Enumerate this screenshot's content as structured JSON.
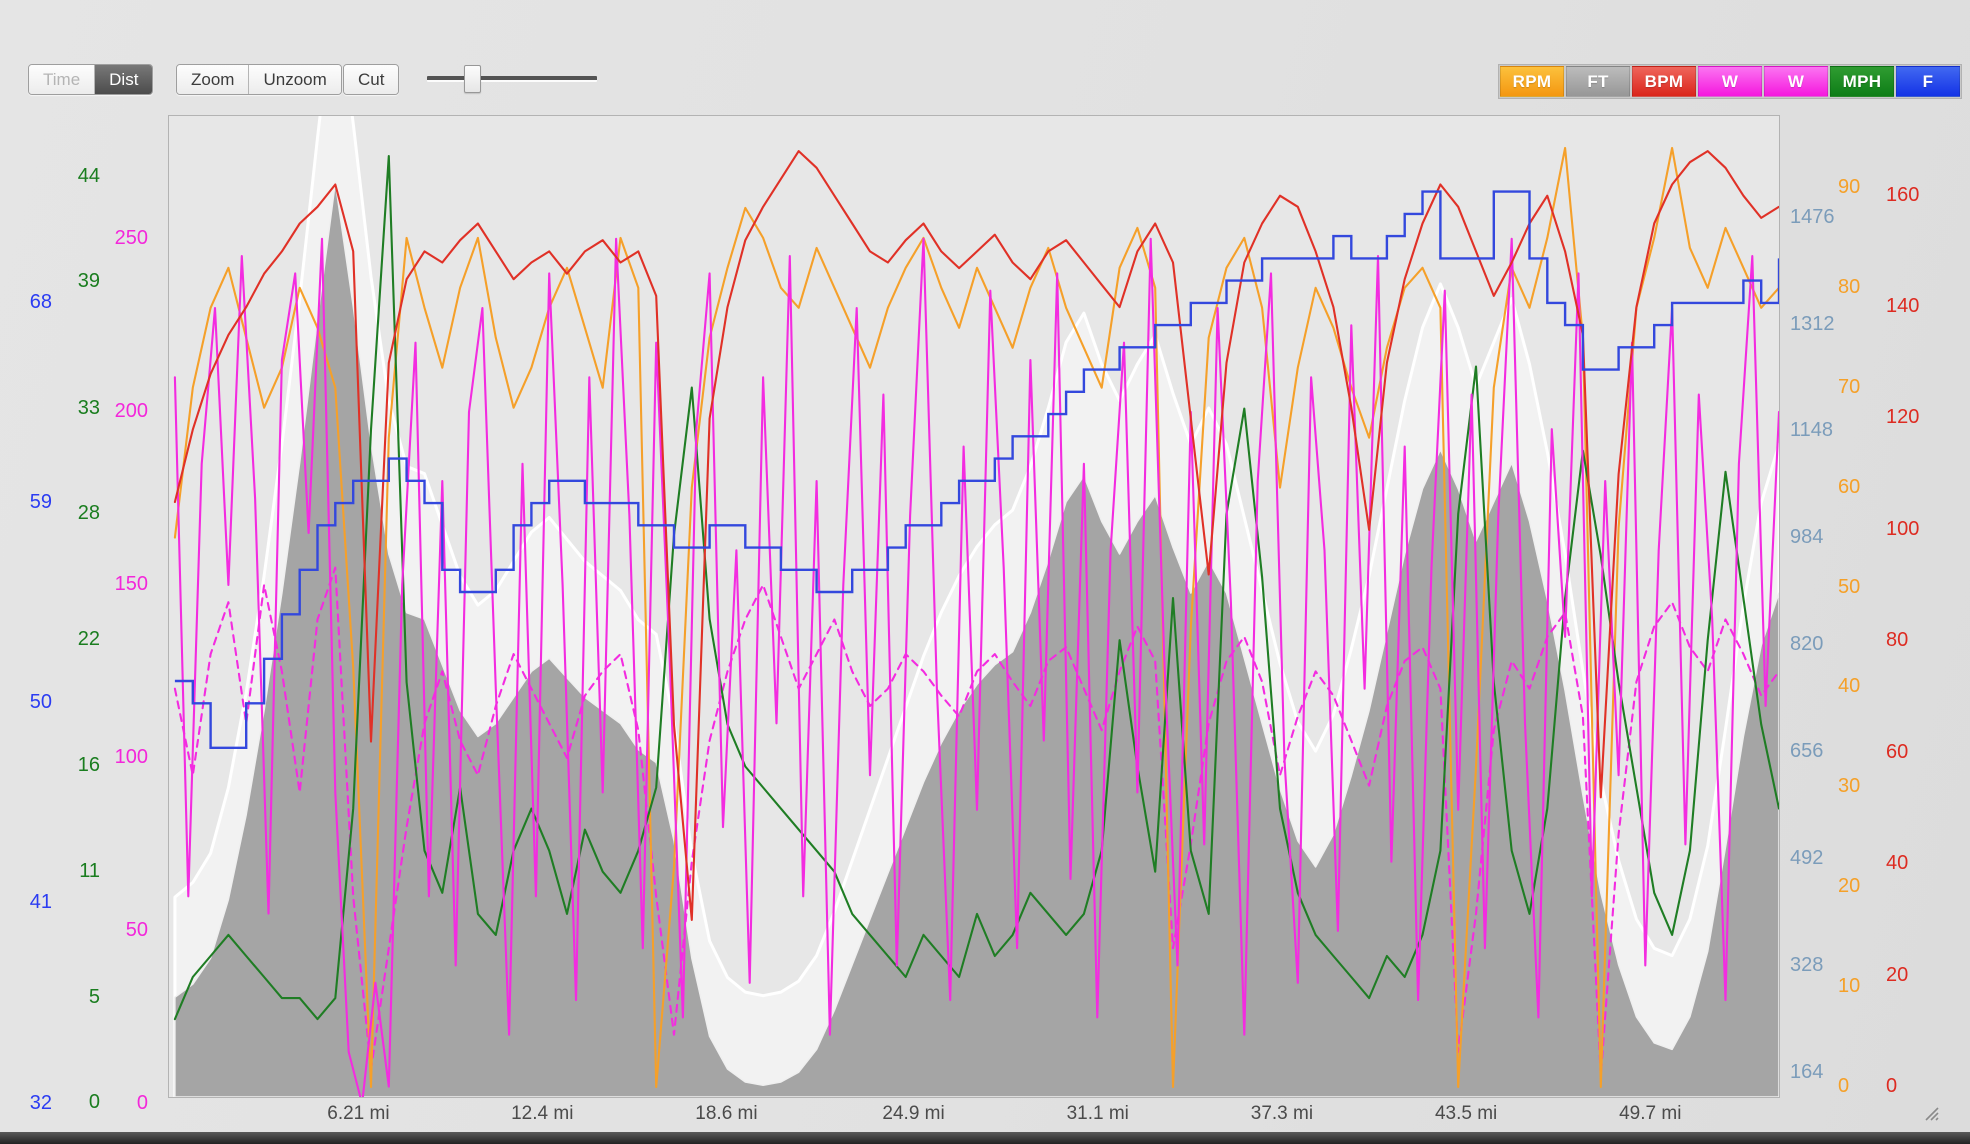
{
  "toolbar": {
    "mode_toggle": [
      {
        "label": "Time",
        "state": "inactive"
      },
      {
        "label": "Dist",
        "state": "active"
      }
    ],
    "zoom_label": "Zoom",
    "unzoom_label": "Unzoom",
    "cut_label": "Cut",
    "slider": {
      "position_pct": 22
    }
  },
  "legend": [
    {
      "label": "RPM",
      "series": "cadence",
      "color_top": "#fcc13c",
      "color_bottom": "#f49711"
    },
    {
      "label": "FT",
      "series": "elevation",
      "color_top": "#bcbcbc",
      "color_bottom": "#979797"
    },
    {
      "label": "BPM",
      "series": "heart_rate",
      "color_top": "#ef655b",
      "color_bottom": "#da251b"
    },
    {
      "label": "W",
      "series": "power",
      "color_top": "#fb74f1",
      "color_bottom": "#f517de"
    },
    {
      "label": "W",
      "series": "power_smoothed",
      "color_top": "#fb74f1",
      "color_bottom": "#f517de"
    },
    {
      "label": "MPH",
      "series": "speed",
      "color_top": "#2f9c31",
      "color_bottom": "#0e7d17"
    },
    {
      "label": "F",
      "series": "temperature",
      "color_top": "#4168f1",
      "color_bottom": "#1433e6"
    }
  ],
  "chart_data": {
    "type": "line",
    "x_unit": "mi",
    "xlim": [
      -0.2,
      54
    ],
    "grid": false,
    "x_ticks": [
      {
        "value": 6.21,
        "label": "6.21 mi"
      },
      {
        "value": 12.4,
        "label": "12.4 mi"
      },
      {
        "value": 18.6,
        "label": "18.6 mi"
      },
      {
        "value": 24.9,
        "label": "24.9 mi"
      },
      {
        "value": 31.1,
        "label": "31.1 mi"
      },
      {
        "value": 37.3,
        "label": "37.3 mi"
      },
      {
        "value": 43.5,
        "label": "43.5 mi"
      },
      {
        "value": 49.7,
        "label": "49.7 mi"
      }
    ],
    "axes": {
      "f": {
        "side": "left",
        "unit": "F",
        "color": "#2b3cf2",
        "ylim": [
          32.3,
          76.4
        ],
        "ticks": [
          32,
          41,
          50,
          59,
          68
        ]
      },
      "mph": {
        "side": "left",
        "unit": "MPH",
        "color": "#1a7d1f",
        "ylim": [
          0.3,
          46.9
        ],
        "ticks": [
          0,
          5,
          11,
          16,
          22,
          28,
          33,
          39,
          44
        ]
      },
      "w": {
        "side": "left",
        "unit": "W",
        "color": "#f327da",
        "ylim": [
          2,
          285.5
        ],
        "ticks": [
          0,
          50,
          100,
          150,
          200,
          250
        ]
      },
      "ft": {
        "side": "right",
        "unit": "FT",
        "color": "#7b9cba",
        "ylim": [
          127,
          1632
        ],
        "ticks": [
          164,
          328,
          492,
          656,
          820,
          984,
          1148,
          1312,
          1476
        ]
      },
      "rpm": {
        "side": "right",
        "unit": "RPM",
        "color": "#f5a028",
        "ylim": [
          -1,
          97.2
        ],
        "ticks": [
          0,
          10,
          20,
          30,
          40,
          50,
          60,
          70,
          80,
          90
        ]
      },
      "bpm": {
        "side": "right",
        "unit": "BPM",
        "color": "#dd2b21",
        "ylim": [
          -1.8,
          174.3
        ],
        "ticks": [
          0,
          20,
          40,
          60,
          80,
          100,
          120,
          140,
          160
        ]
      }
    },
    "series": [
      {
        "name": "elevation",
        "label": "FT",
        "axis": "ft",
        "type": "area",
        "color": "#9e9e9e",
        "glow_color": "#f2f2f2",
        "x_step_mi": 0.6,
        "values": [
          280,
          300,
          340,
          430,
          560,
          720,
          900,
          1100,
          1320,
          1530,
          1340,
          1130,
          960,
          870,
          860,
          790,
          720,
          680,
          700,
          740,
          780,
          800,
          770,
          740,
          720,
          700,
          660,
          640,
          520,
          340,
          220,
          170,
          150,
          145,
          150,
          165,
          200,
          260,
          330,
          400,
          470,
          540,
          610,
          670,
          720,
          760,
          790,
          810,
          870,
          950,
          1040,
          1080,
          1010,
          960,
          1010,
          1050,
          970,
          900,
          950,
          900,
          800,
          700,
          600,
          520,
          480,
          530,
          620,
          720,
          840,
          960,
          1060,
          1120,
          1060,
          980,
          1040,
          1100,
          1010,
          890,
          750,
          590,
          440,
          330,
          250,
          210,
          200,
          250,
          350,
          510,
          680,
          820,
          900
        ]
      },
      {
        "name": "power_smoothed",
        "label": "W",
        "axis": "w",
        "type": "dashed",
        "color": "#f32ce0",
        "x_step_mi": 0.6,
        "values": [
          120,
          95,
          130,
          145,
          110,
          150,
          125,
          90,
          140,
          155,
          60,
          10,
          45,
          80,
          110,
          125,
          105,
          95,
          115,
          130,
          120,
          110,
          100,
          118,
          125,
          130,
          108,
          60,
          20,
          70,
          105,
          125,
          140,
          150,
          135,
          120,
          130,
          140,
          125,
          115,
          120,
          130,
          125,
          118,
          112,
          125,
          130,
          122,
          115,
          128,
          132,
          120,
          108,
          125,
          138,
          128,
          45,
          75,
          110,
          128,
          135,
          122,
          95,
          112,
          125,
          118,
          105,
          92,
          115,
          128,
          132,
          120,
          15,
          55,
          108,
          128,
          120,
          135,
          142,
          112,
          8,
          78,
          122,
          138,
          145,
          132,
          125,
          140,
          130,
          118,
          125
        ]
      },
      {
        "name": "cadence",
        "label": "RPM",
        "axis": "rpm",
        "type": "line",
        "color": "#f5a02a",
        "x_step_mi": 0.6,
        "values": [
          55,
          70,
          78,
          82,
          75,
          68,
          72,
          80,
          76,
          70,
          42,
          0,
          65,
          85,
          78,
          72,
          80,
          85,
          75,
          68,
          72,
          78,
          82,
          76,
          70,
          85,
          80,
          0,
          22,
          60,
          75,
          82,
          88,
          85,
          80,
          78,
          84,
          80,
          76,
          72,
          78,
          82,
          85,
          80,
          76,
          82,
          78,
          74,
          80,
          84,
          78,
          74,
          70,
          82,
          86,
          80,
          0,
          46,
          75,
          82,
          85,
          78,
          60,
          72,
          80,
          76,
          70,
          65,
          74,
          80,
          82,
          78,
          0,
          32,
          70,
          82,
          78,
          85,
          94,
          75,
          0,
          56,
          78,
          85,
          94,
          84,
          80,
          86,
          82,
          78,
          80
        ]
      },
      {
        "name": "speed",
        "label": "MPH",
        "axis": "mph",
        "type": "line",
        "color": "#1f7d24",
        "x_step_mi": 0.6,
        "values": [
          4,
          6,
          7,
          8,
          7,
          6,
          5,
          5,
          4,
          5,
          14,
          32,
          45,
          20,
          12,
          10,
          15,
          9,
          8,
          12,
          14,
          12,
          9,
          13,
          11,
          10,
          12,
          15,
          27,
          34,
          23,
          18,
          16,
          15,
          14,
          13,
          12,
          11,
          9,
          8,
          7,
          6,
          8,
          7,
          6,
          9,
          7,
          8,
          10,
          9,
          8,
          9,
          12,
          22,
          16,
          11,
          24,
          12,
          9,
          28,
          33,
          25,
          14,
          10,
          8,
          7,
          6,
          5,
          7,
          6,
          8,
          12,
          28,
          35,
          20,
          12,
          9,
          14,
          24,
          31,
          26,
          20,
          15,
          10,
          8,
          12,
          22,
          30,
          24,
          18,
          14
        ]
      },
      {
        "name": "power",
        "label": "W",
        "axis": "w",
        "type": "line",
        "color": "#f32ce0",
        "x_step_mi": 0.45,
        "values": [
          210,
          60,
          185,
          230,
          150,
          245,
          175,
          55,
          215,
          240,
          165,
          250,
          90,
          15,
          0,
          35,
          5,
          150,
          220,
          60,
          180,
          40,
          200,
          230,
          120,
          20,
          185,
          60,
          240,
          150,
          30,
          210,
          90,
          250,
          170,
          45,
          220,
          130,
          25,
          195,
          240,
          80,
          160,
          35,
          210,
          110,
          245,
          60,
          180,
          20,
          150,
          230,
          95,
          205,
          40,
          170,
          250,
          120,
          30,
          190,
          85,
          235,
          155,
          45,
          215,
          105,
          240,
          65,
          185,
          25,
          160,
          220,
          90,
          250,
          130,
          40,
          200,
          75,
          230,
          145,
          20,
          180,
          240,
          100,
          35,
          210,
          160,
          50,
          225,
          120,
          245,
          70,
          190,
          30,
          155,
          235,
          85,
          205,
          45,
          170,
          250,
          110,
          25,
          195,
          135,
          240,
          60,
          180,
          95,
          220,
          40,
          160,
          230,
          75,
          205,
          140,
          30,
          185,
          245,
          115,
          200
        ]
      },
      {
        "name": "heart_rate",
        "label": "BPM",
        "axis": "bpm",
        "type": "line",
        "color": "#e03127",
        "x_step_mi": 0.6,
        "values": [
          105,
          118,
          128,
          135,
          140,
          146,
          150,
          155,
          158,
          162,
          150,
          62,
          130,
          145,
          150,
          148,
          152,
          155,
          150,
          145,
          148,
          150,
          146,
          150,
          152,
          148,
          150,
          142,
          65,
          30,
          120,
          140,
          152,
          158,
          163,
          168,
          165,
          160,
          155,
          150,
          148,
          152,
          155,
          150,
          147,
          150,
          153,
          148,
          145,
          150,
          152,
          148,
          144,
          140,
          150,
          155,
          148,
          120,
          92,
          130,
          148,
          155,
          160,
          158,
          150,
          140,
          122,
          100,
          130,
          145,
          155,
          162,
          158,
          150,
          142,
          148,
          155,
          160,
          150,
          135,
          52,
          110,
          140,
          155,
          162,
          166,
          168,
          165,
          160,
          156,
          158
        ]
      },
      {
        "name": "temperature",
        "label": "F",
        "axis": "f",
        "type": "step",
        "color": "#3348dd",
        "x_step_mi": 0.6,
        "values": [
          51,
          50,
          48,
          48,
          50,
          52,
          54,
          56,
          58,
          59,
          60,
          60,
          61,
          60,
          59,
          56,
          55,
          55,
          56,
          58,
          59,
          60,
          60,
          59,
          59,
          59,
          58,
          58,
          57,
          57,
          58,
          58,
          57,
          57,
          56,
          56,
          55,
          55,
          56,
          56,
          57,
          58,
          58,
          59,
          60,
          60,
          61,
          62,
          62,
          63,
          64,
          65,
          65,
          66,
          66,
          67,
          67,
          68,
          68,
          69,
          69,
          70,
          70,
          70,
          70,
          71,
          70,
          70,
          71,
          72,
          73,
          70,
          70,
          70,
          73,
          73,
          70,
          68,
          67,
          65,
          65,
          66,
          66,
          67,
          68,
          68,
          68,
          68,
          69,
          68,
          70
        ]
      }
    ]
  }
}
